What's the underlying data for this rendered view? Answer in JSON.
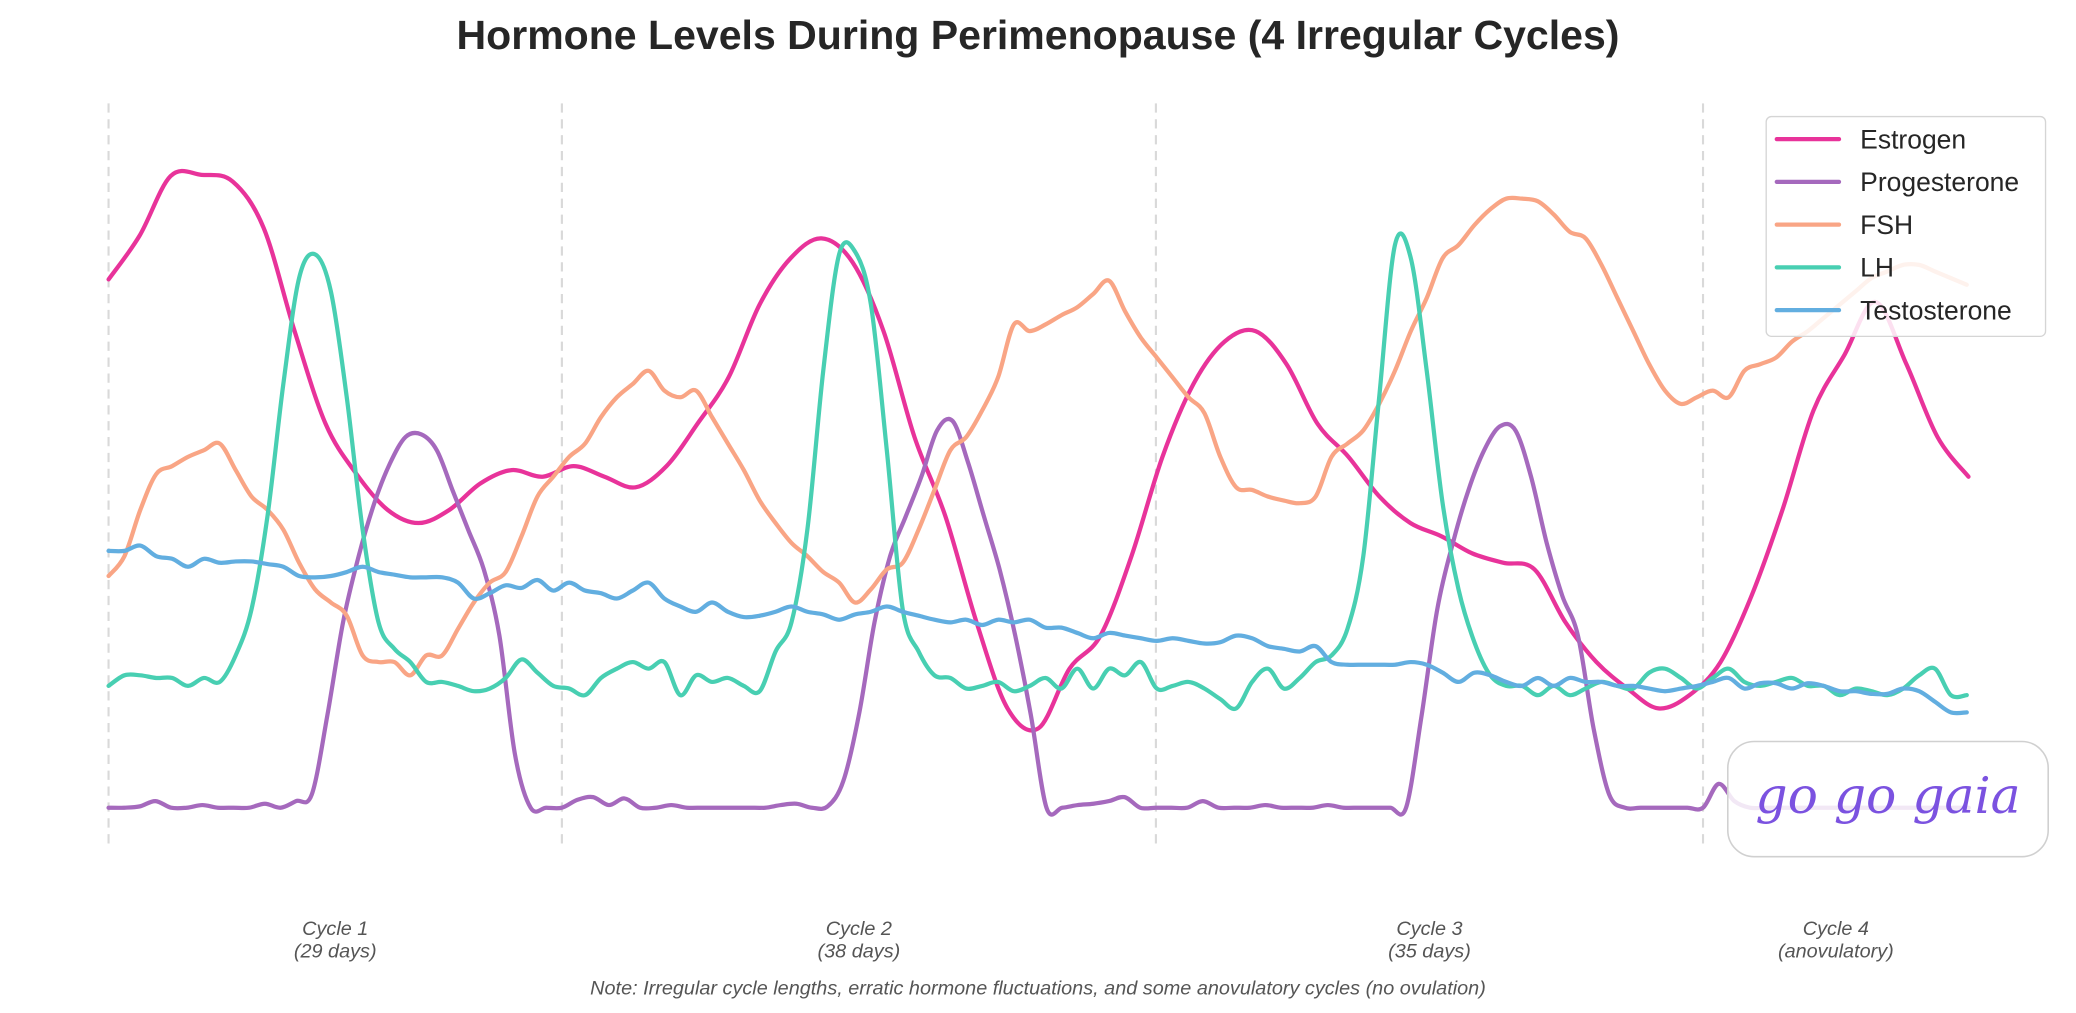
{
  "chart_data": {
    "type": "line",
    "title": "Hormone Levels During Perimenopause (4 Irregular Cycles)",
    "xlabel": "",
    "ylabel": "",
    "xlim": [
      0,
      119
    ],
    "ylim": [
      0,
      112
    ],
    "grid": false,
    "legend_position": "top-right",
    "cycle_boundaries_days": [
      0,
      29,
      67,
      102
    ],
    "cycles": [
      {
        "label": "Cycle 1",
        "sub": "(29 days)"
      },
      {
        "label": "Cycle 2",
        "sub": "(38 days)"
      },
      {
        "label": "Cycle 3",
        "sub": "(35 days)"
      },
      {
        "label": "Cycle 4",
        "sub": "(anovulatory)"
      }
    ],
    "note": "Note: Irregular cycle lengths, erratic hormone fluctuations, and some anovulatory cycles (no ovulation)",
    "series": [
      {
        "name": "Estrogen",
        "color": "#e8339a",
        "day_step": 1.983,
        "values": [
          85.8,
          92.4,
          101.4,
          101.6,
          100.6,
          93.6,
          78,
          64,
          56.4,
          51,
          49,
          51,
          55,
          57,
          56,
          57.6,
          56,
          54.4,
          57.6,
          64,
          71,
          82,
          89,
          92,
          88.4,
          78,
          62,
          50,
          34,
          21,
          18,
          27,
          32,
          44,
          59,
          70,
          76.4,
          78,
          73,
          64,
          59,
          53,
          49,
          47,
          44.4,
          43,
          42,
          34,
          28,
          24,
          21,
          23,
          28,
          38,
          51,
          66,
          74.4,
          82.4,
          73,
          62,
          56
        ]
      },
      {
        "name": "Progesterone",
        "color": "#a569bd",
        "day_step": 1,
        "values": [
          6,
          6,
          6.2,
          7,
          6,
          6,
          6.4,
          6,
          6,
          6,
          6.6,
          6,
          7,
          8,
          20,
          34,
          44,
          52,
          58,
          62,
          62.4,
          60,
          54,
          48,
          42,
          32,
          14,
          6,
          6,
          6,
          7.2,
          7.6,
          6.4,
          7.4,
          6,
          6,
          6.4,
          6,
          6,
          6,
          6,
          6,
          6,
          6.4,
          6.6,
          6,
          6.2,
          10,
          20,
          34,
          44,
          50,
          56,
          63,
          64.4,
          58,
          50,
          42,
          32,
          20,
          6,
          6,
          6.4,
          6.6,
          7,
          7.6,
          6,
          6,
          6,
          6,
          7,
          6,
          6,
          6,
          6.4,
          6,
          6,
          6,
          6.4,
          6,
          6,
          6,
          6,
          6,
          20,
          36,
          46,
          54,
          60,
          63.6,
          63,
          56,
          46,
          38,
          32,
          18,
          8,
          6,
          6,
          6,
          6,
          6,
          6,
          9.6,
          7,
          6,
          6,
          6,
          6,
          6,
          6,
          6,
          6,
          6,
          6,
          6,
          6,
          6,
          6,
          6
        ]
      },
      {
        "name": "FSH",
        "color": "#f9a585",
        "day_step": 1.016,
        "values": [
          41,
          44,
          51,
          56.4,
          57.6,
          59,
          60,
          61,
          57,
          53,
          51,
          48,
          43,
          39,
          37,
          35,
          29,
          28,
          28,
          26,
          29,
          29,
          33,
          37,
          40,
          41.6,
          47,
          53,
          56,
          59,
          61,
          65,
          68,
          70,
          72,
          69,
          68,
          69,
          65,
          61,
          57,
          52.4,
          49,
          46,
          44,
          41.6,
          40,
          37,
          39,
          42,
          43,
          48,
          54,
          60,
          62,
          66,
          71,
          79,
          78,
          79,
          80.4,
          81.6,
          83.6,
          85.6,
          81,
          77,
          74,
          71,
          68,
          65.6,
          59,
          54.4,
          54,
          53,
          52.4,
          52,
          53,
          59,
          61,
          63,
          67,
          72,
          78,
          83,
          89,
          91,
          94,
          96.4,
          98,
          98,
          97.6,
          95.6,
          93,
          92,
          88,
          83,
          78,
          73,
          69,
          67,
          68,
          69,
          68,
          72,
          73,
          74,
          76.4,
          78,
          80,
          82,
          84,
          86,
          87,
          88,
          88,
          87,
          86,
          85
        ]
      },
      {
        "name": "LH",
        "color": "#48cfb2",
        "day_step": 1.016,
        "values": [
          24.4,
          26,
          26,
          25.6,
          25.6,
          24.4,
          25.6,
          25,
          29,
          36,
          50,
          70,
          86,
          89.6,
          84,
          68,
          48,
          34,
          30,
          28,
          25,
          25,
          24.4,
          23.6,
          24,
          25.6,
          28.4,
          26.4,
          24.4,
          24,
          23,
          25.6,
          27,
          28,
          27,
          28,
          23,
          26,
          25,
          25.6,
          24.4,
          23.6,
          29.6,
          34,
          48,
          72,
          89.6,
          90,
          82,
          60,
          36,
          29.6,
          26,
          25.6,
          24,
          24.4,
          25,
          23.6,
          24.4,
          25.6,
          24,
          27,
          24,
          27,
          26,
          28,
          24,
          24.4,
          25,
          24,
          22.4,
          21,
          25,
          27,
          24,
          25.6,
          28,
          29,
          33,
          44,
          68,
          91,
          89,
          72,
          52,
          39,
          31,
          26,
          24.4,
          24.4,
          23,
          24.4,
          23,
          24,
          25,
          24.4,
          24,
          26.4,
          27,
          25.6,
          24,
          25.6,
          27,
          25,
          24.4,
          25,
          25.6,
          24.4,
          24.4,
          23,
          24,
          23.6,
          23,
          24,
          26,
          27,
          23,
          23
        ]
      },
      {
        "name": "Testosterone",
        "color": "#62aee0",
        "day_step": 1.016,
        "values": [
          44.8,
          44.8,
          45.6,
          44,
          43.6,
          42.4,
          43.6,
          43,
          43.2,
          43.2,
          42.8,
          42.4,
          41,
          40.8,
          41,
          41.6,
          42.4,
          41.6,
          41.2,
          40.8,
          40.8,
          40.8,
          40,
          37.6,
          38.4,
          39.6,
          39.2,
          40.4,
          38.8,
          40,
          38.8,
          38.4,
          37.6,
          38.8,
          40,
          37.6,
          36.4,
          35.6,
          37,
          35.6,
          34.8,
          35,
          35.6,
          36.4,
          35.6,
          35.2,
          34.4,
          35.2,
          35.6,
          36.4,
          35.6,
          35,
          34.4,
          34,
          34.4,
          33.6,
          34.4,
          34,
          34.4,
          33.2,
          33.2,
          32.4,
          31.6,
          32.4,
          32,
          31.6,
          31.2,
          31.6,
          31.2,
          30.8,
          31,
          32,
          31.6,
          30.4,
          30,
          29.6,
          30.4,
          28,
          27.6,
          27.6,
          27.6,
          27.6,
          28,
          27.6,
          26.4,
          25,
          26.4,
          26,
          25,
          24.4,
          25.6,
          24.4,
          25.6,
          25,
          25,
          24.4,
          24.4,
          24,
          23.6,
          24,
          24.4,
          25,
          25.6,
          24,
          24.8,
          24.8,
          24,
          24.8,
          24.4,
          23.6,
          23.6,
          23.2,
          23.2,
          24,
          23.6,
          22,
          20.4,
          20.4
        ]
      }
    ]
  },
  "watermark": "go go gaia"
}
